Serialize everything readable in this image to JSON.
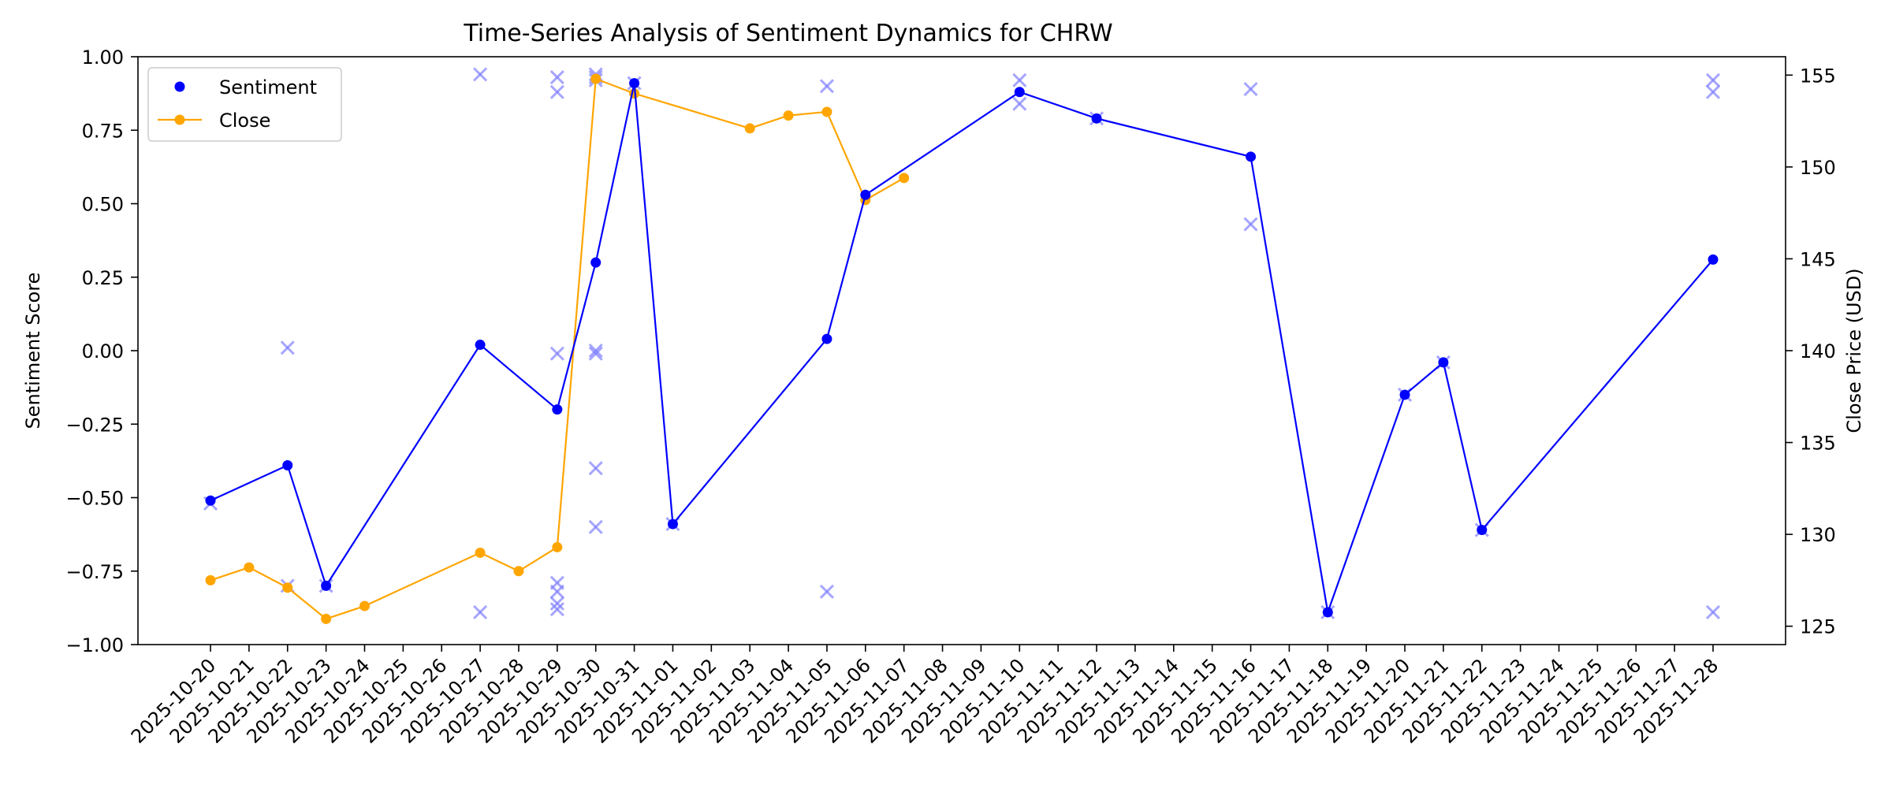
{
  "chart_data": {
    "type": "line",
    "title": "Time-Series Analysis of Sentiment Dynamics for CHRW",
    "ylabel": "Sentiment Score",
    "y2label": "Close Price (USD)",
    "ylim": [
      -1.0,
      1.0
    ],
    "y2lim": [
      124.0,
      156.0
    ],
    "yticks": [
      "−1.00",
      "−0.75",
      "−0.50",
      "−0.25",
      "0.00",
      "0.25",
      "0.50",
      "0.75",
      "1.00"
    ],
    "y2ticks": [
      "125",
      "130",
      "135",
      "140",
      "145",
      "150",
      "155"
    ],
    "categories": [
      "2025-10-20",
      "2025-10-21",
      "2025-10-22",
      "2025-10-23",
      "2025-10-24",
      "2025-10-25",
      "2025-10-26",
      "2025-10-27",
      "2025-10-28",
      "2025-10-29",
      "2025-10-30",
      "2025-10-31",
      "2025-11-01",
      "2025-11-02",
      "2025-11-03",
      "2025-11-04",
      "2025-11-05",
      "2025-11-06",
      "2025-11-07",
      "2025-11-08",
      "2025-11-09",
      "2025-11-10",
      "2025-11-11",
      "2025-11-12",
      "2025-11-13",
      "2025-11-14",
      "2025-11-15",
      "2025-11-16",
      "2025-11-17",
      "2025-11-18",
      "2025-11-19",
      "2025-11-20",
      "2025-11-21",
      "2025-11-22",
      "2025-11-23",
      "2025-11-24",
      "2025-11-25",
      "2025-11-26",
      "2025-11-27",
      "2025-11-28"
    ],
    "legend": {
      "placement": "upper-left",
      "entries": [
        "Sentiment",
        "Close"
      ]
    },
    "grid": false,
    "colors": {
      "sentiment": "#0000ff",
      "close": "#ffa500",
      "raw": "#8080ff"
    },
    "series": [
      {
        "name": "Sentiment",
        "axis": "left",
        "points": [
          {
            "x": "2025-10-20",
            "y": -0.51
          },
          {
            "x": "2025-10-22",
            "y": -0.39
          },
          {
            "x": "2025-10-23",
            "y": -0.8
          },
          {
            "x": "2025-10-27",
            "y": 0.02
          },
          {
            "x": "2025-10-29",
            "y": -0.2
          },
          {
            "x": "2025-10-30",
            "y": 0.3
          },
          {
            "x": "2025-10-31",
            "y": 0.91
          },
          {
            "x": "2025-11-01",
            "y": -0.59
          },
          {
            "x": "2025-11-05",
            "y": 0.04
          },
          {
            "x": "2025-11-06",
            "y": 0.53
          },
          {
            "x": "2025-11-10",
            "y": 0.88
          },
          {
            "x": "2025-11-12",
            "y": 0.79
          },
          {
            "x": "2025-11-16",
            "y": 0.66
          },
          {
            "x": "2025-11-18",
            "y": -0.89
          },
          {
            "x": "2025-11-20",
            "y": -0.15
          },
          {
            "x": "2025-11-21",
            "y": -0.04
          },
          {
            "x": "2025-11-22",
            "y": -0.61
          },
          {
            "x": "2025-11-28",
            "y": 0.31
          }
        ]
      },
      {
        "name": "Close",
        "axis": "right",
        "points": [
          {
            "x": "2025-10-20",
            "y": 127.5
          },
          {
            "x": "2025-10-21",
            "y": 128.2
          },
          {
            "x": "2025-10-22",
            "y": 127.1
          },
          {
            "x": "2025-10-23",
            "y": 125.4
          },
          {
            "x": "2025-10-24",
            "y": 126.1
          },
          {
            "x": "2025-10-27",
            "y": 129.0
          },
          {
            "x": "2025-10-28",
            "y": 128.0
          },
          {
            "x": "2025-10-29",
            "y": 129.3
          },
          {
            "x": "2025-10-30",
            "y": 154.8
          },
          {
            "x": "2025-10-31",
            "y": 154.0
          },
          {
            "x": "2025-11-03",
            "y": 152.1
          },
          {
            "x": "2025-11-04",
            "y": 152.8
          },
          {
            "x": "2025-11-05",
            "y": 153.0
          },
          {
            "x": "2025-11-06",
            "y": 148.2
          },
          {
            "x": "2025-11-07",
            "y": 149.4
          }
        ]
      },
      {
        "axis": "left",
        "marker": "x",
        "points": [
          {
            "x": "2025-10-20",
            "y": -0.52
          },
          {
            "x": "2025-10-22",
            "y": 0.01
          },
          {
            "x": "2025-10-22",
            "y": -0.8
          },
          {
            "x": "2025-10-23",
            "y": -0.8
          },
          {
            "x": "2025-10-27",
            "y": 0.94
          },
          {
            "x": "2025-10-27",
            "y": -0.89
          },
          {
            "x": "2025-10-29",
            "y": 0.93
          },
          {
            "x": "2025-10-29",
            "y": 0.88
          },
          {
            "x": "2025-10-29",
            "y": -0.01
          },
          {
            "x": "2025-10-29",
            "y": -0.79
          },
          {
            "x": "2025-10-29",
            "y": -0.82
          },
          {
            "x": "2025-10-29",
            "y": -0.86
          },
          {
            "x": "2025-10-29",
            "y": -0.88
          },
          {
            "x": "2025-10-30",
            "y": 0.93
          },
          {
            "x": "2025-10-30",
            "y": 0.94
          },
          {
            "x": "2025-10-30",
            "y": 0.92
          },
          {
            "x": "2025-10-30",
            "y": -0.01
          },
          {
            "x": "2025-10-30",
            "y": 0.0
          },
          {
            "x": "2025-10-30",
            "y": -0.4
          },
          {
            "x": "2025-10-30",
            "y": -0.6
          },
          {
            "x": "2025-10-31",
            "y": 0.91
          },
          {
            "x": "2025-11-01",
            "y": -0.59
          },
          {
            "x": "2025-11-05",
            "y": 0.9
          },
          {
            "x": "2025-11-05",
            "y": -0.82
          },
          {
            "x": "2025-11-10",
            "y": 0.92
          },
          {
            "x": "2025-11-10",
            "y": 0.84
          },
          {
            "x": "2025-11-12",
            "y": 0.79
          },
          {
            "x": "2025-11-16",
            "y": 0.89
          },
          {
            "x": "2025-11-16",
            "y": 0.43
          },
          {
            "x": "2025-11-18",
            "y": -0.89
          },
          {
            "x": "2025-11-20",
            "y": -0.15
          },
          {
            "x": "2025-11-21",
            "y": -0.04
          },
          {
            "x": "2025-11-22",
            "y": -0.61
          },
          {
            "x": "2025-11-28",
            "y": 0.92
          },
          {
            "x": "2025-11-28",
            "y": 0.88
          },
          {
            "x": "2025-11-28",
            "y": -0.89
          }
        ]
      }
    ]
  }
}
